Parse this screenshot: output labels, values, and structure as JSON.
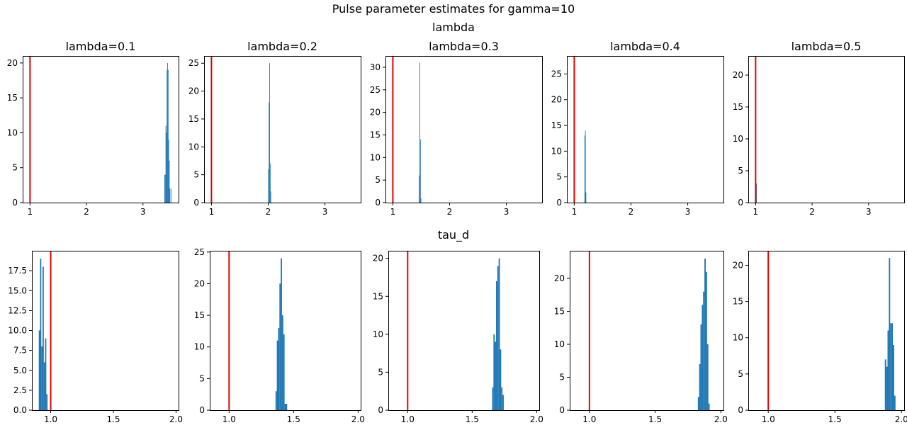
{
  "title": "Pulse parameter estimates for gamma=10",
  "colors": {
    "bars": "#1f77b4",
    "reference_line": "#e60000",
    "axes": "#000000"
  },
  "chart_data": [
    {
      "type": "bar",
      "row_title": "lambda",
      "title": "lambda=0.1",
      "xlim": [
        0.87,
        3.63
      ],
      "ylim": [
        0,
        21
      ],
      "xticks": [
        1,
        2,
        3
      ],
      "xtick_labels": [
        "1",
        "2",
        "3"
      ],
      "yticks": [
        0,
        5,
        10,
        15,
        20
      ],
      "ytick_labels": [
        "0",
        "5",
        "10",
        "15",
        "20"
      ],
      "reference_line_x": 1.0,
      "bins": [
        {
          "x0": 3.38,
          "x1": 3.4,
          "y": 4
        },
        {
          "x0": 3.4,
          "x1": 3.41,
          "y": 11
        },
        {
          "x0": 3.41,
          "x1": 3.42,
          "y": 10
        },
        {
          "x0": 3.42,
          "x1": 3.43,
          "y": 19
        },
        {
          "x0": 3.43,
          "x1": 3.44,
          "y": 20
        },
        {
          "x0": 3.44,
          "x1": 3.45,
          "y": 19
        },
        {
          "x0": 3.45,
          "x1": 3.46,
          "y": 9
        },
        {
          "x0": 3.46,
          "x1": 3.47,
          "y": 6
        },
        {
          "x0": 3.47,
          "x1": 3.48,
          "y": 2
        },
        {
          "x0": 3.49,
          "x1": 3.5,
          "y": 2
        }
      ]
    },
    {
      "type": "bar",
      "row_title": "lambda",
      "title": "lambda=0.2",
      "xlim": [
        0.87,
        3.63
      ],
      "ylim": [
        0,
        26.3
      ],
      "xticks": [
        1,
        2,
        3
      ],
      "xtick_labels": [
        "1",
        "2",
        "3"
      ],
      "yticks": [
        0,
        5,
        10,
        15,
        20,
        25
      ],
      "ytick_labels": [
        "0",
        "5",
        "10",
        "15",
        "20",
        "25"
      ],
      "reference_line_x": 1.0,
      "bins": [
        {
          "x0": 2.0,
          "x1": 2.01,
          "y": 6
        },
        {
          "x0": 2.01,
          "x1": 2.02,
          "y": 18
        },
        {
          "x0": 2.02,
          "x1": 2.03,
          "y": 25
        },
        {
          "x0": 2.03,
          "x1": 2.04,
          "y": 7
        },
        {
          "x0": 2.04,
          "x1": 2.05,
          "y": 2
        }
      ]
    },
    {
      "type": "bar",
      "row_title": "lambda",
      "title": "lambda=0.3",
      "xlim": [
        0.87,
        3.63
      ],
      "ylim": [
        0,
        32.5
      ],
      "xticks": [
        1,
        2,
        3
      ],
      "xtick_labels": [
        "1",
        "2",
        "3"
      ],
      "yticks": [
        0,
        5,
        10,
        15,
        20,
        25,
        30
      ],
      "ytick_labels": [
        "0",
        "5",
        "10",
        "15",
        "20",
        "25",
        "30"
      ],
      "reference_line_x": 1.0,
      "bins": [
        {
          "x0": 1.46,
          "x1": 1.47,
          "y": 6
        },
        {
          "x0": 1.47,
          "x1": 1.48,
          "y": 31
        },
        {
          "x0": 1.48,
          "x1": 1.49,
          "y": 14
        },
        {
          "x0": 1.49,
          "x1": 1.5,
          "y": 1
        }
      ]
    },
    {
      "type": "bar",
      "row_title": "lambda",
      "title": "lambda=0.4",
      "xlim": [
        0.87,
        3.63
      ],
      "ylim": [
        0,
        28.5
      ],
      "xticks": [
        1,
        2,
        3
      ],
      "xtick_labels": [
        "1",
        "2",
        "3"
      ],
      "yticks": [
        0,
        5,
        10,
        15,
        20,
        25
      ],
      "ytick_labels": [
        "0",
        "5",
        "10",
        "15",
        "20",
        "25"
      ],
      "reference_line_x": 1.0,
      "bins": [
        {
          "x0": 1.18,
          "x1": 1.19,
          "y": 13
        },
        {
          "x0": 1.19,
          "x1": 1.2,
          "y": 14
        },
        {
          "x0": 1.2,
          "x1": 1.21,
          "y": 2
        }
      ]
    },
    {
      "type": "bar",
      "row_title": "lambda",
      "title": "lambda=0.5",
      "xlim": [
        0.87,
        3.63
      ],
      "ylim": [
        0,
        23
      ],
      "xticks": [
        1,
        2,
        3
      ],
      "xtick_labels": [
        "1",
        "2",
        "3"
      ],
      "yticks": [
        0,
        5,
        10,
        15,
        20
      ],
      "ytick_labels": [
        "0",
        "5",
        "10",
        "15",
        "20"
      ],
      "reference_line_x": 1.0,
      "bins": [
        {
          "x0": 1.0,
          "x1": 1.01,
          "y": 1
        },
        {
          "x0": 1.01,
          "x1": 1.02,
          "y": 3
        }
      ]
    },
    {
      "type": "bar",
      "row_title": "tau_d",
      "title": "",
      "xlim": [
        0.85,
        2.02
      ],
      "ylim": [
        0,
        20
      ],
      "xticks": [
        1.0,
        1.5,
        2.0
      ],
      "xtick_labels": [
        "1.0",
        "1.5",
        "2.0"
      ],
      "yticks": [
        0,
        2.5,
        5,
        7.5,
        10,
        12.5,
        15,
        17.5
      ],
      "ytick_labels": [
        "0.0",
        "2.5",
        "5.0",
        "7.5",
        "10.0",
        "12.5",
        "15.0",
        "17.5"
      ],
      "reference_line_x": 1.0,
      "bins": [
        {
          "x0": 0.905,
          "x1": 0.915,
          "y": 10
        },
        {
          "x0": 0.915,
          "x1": 0.925,
          "y": 19
        },
        {
          "x0": 0.925,
          "x1": 0.935,
          "y": 8
        },
        {
          "x0": 0.935,
          "x1": 0.945,
          "y": 18
        },
        {
          "x0": 0.945,
          "x1": 0.955,
          "y": 6
        },
        {
          "x0": 0.955,
          "x1": 0.965,
          "y": 9
        },
        {
          "x0": 0.965,
          "x1": 0.975,
          "y": 2
        }
      ]
    },
    {
      "type": "bar",
      "row_title": "tau_d",
      "title": "",
      "xlim": [
        0.85,
        2.02
      ],
      "ylim": [
        0,
        25.2
      ],
      "xticks": [
        1.0,
        1.5,
        2.0
      ],
      "xtick_labels": [
        "1.0",
        "1.5",
        "2.0"
      ],
      "yticks": [
        0,
        5,
        10,
        15,
        20,
        25
      ],
      "ytick_labels": [
        "0",
        "5",
        "10",
        "15",
        "20",
        "25"
      ],
      "reference_line_x": 1.0,
      "bins": [
        {
          "x0": 1.36,
          "x1": 1.37,
          "y": 3
        },
        {
          "x0": 1.37,
          "x1": 1.38,
          "y": 11
        },
        {
          "x0": 1.38,
          "x1": 1.39,
          "y": 13
        },
        {
          "x0": 1.39,
          "x1": 1.4,
          "y": 20
        },
        {
          "x0": 1.4,
          "x1": 1.41,
          "y": 24
        },
        {
          "x0": 1.41,
          "x1": 1.42,
          "y": 15
        },
        {
          "x0": 1.42,
          "x1": 1.43,
          "y": 12
        },
        {
          "x0": 1.43,
          "x1": 1.45,
          "y": 1
        }
      ]
    },
    {
      "type": "bar",
      "row_title": "tau_d",
      "title": "",
      "xlim": [
        0.85,
        2.02
      ],
      "ylim": [
        0,
        21
      ],
      "xticks": [
        1.0,
        1.5,
        2.0
      ],
      "xtick_labels": [
        "1.0",
        "1.5",
        "2.0"
      ],
      "yticks": [
        0,
        5,
        10,
        15,
        20
      ],
      "ytick_labels": [
        "0",
        "5",
        "10",
        "15",
        "20"
      ],
      "reference_line_x": 1.0,
      "bins": [
        {
          "x0": 1.655,
          "x1": 1.665,
          "y": 3
        },
        {
          "x0": 1.665,
          "x1": 1.675,
          "y": 10
        },
        {
          "x0": 1.675,
          "x1": 1.685,
          "y": 9
        },
        {
          "x0": 1.685,
          "x1": 1.695,
          "y": 17
        },
        {
          "x0": 1.695,
          "x1": 1.705,
          "y": 19
        },
        {
          "x0": 1.705,
          "x1": 1.715,
          "y": 20
        },
        {
          "x0": 1.715,
          "x1": 1.725,
          "y": 8
        },
        {
          "x0": 1.725,
          "x1": 1.735,
          "y": 3
        },
        {
          "x0": 1.735,
          "x1": 1.745,
          "y": 2
        }
      ]
    },
    {
      "type": "bar",
      "row_title": "tau_d",
      "title": "",
      "xlim": [
        0.85,
        2.02
      ],
      "ylim": [
        0,
        24.2
      ],
      "xticks": [
        1.0,
        1.5,
        2.0
      ],
      "xtick_labels": [
        "1.0",
        "1.5",
        "2.0"
      ],
      "yticks": [
        0,
        5,
        10,
        15,
        20
      ],
      "ytick_labels": [
        "0",
        "5",
        "10",
        "15",
        "20"
      ],
      "reference_line_x": 1.0,
      "bins": [
        {
          "x0": 1.825,
          "x1": 1.835,
          "y": 2
        },
        {
          "x0": 1.835,
          "x1": 1.845,
          "y": 7
        },
        {
          "x0": 1.845,
          "x1": 1.855,
          "y": 13
        },
        {
          "x0": 1.855,
          "x1": 1.865,
          "y": 16
        },
        {
          "x0": 1.865,
          "x1": 1.875,
          "y": 18
        },
        {
          "x0": 1.875,
          "x1": 1.885,
          "y": 23
        },
        {
          "x0": 1.885,
          "x1": 1.895,
          "y": 21
        },
        {
          "x0": 1.895,
          "x1": 1.905,
          "y": 10
        },
        {
          "x0": 1.905,
          "x1": 1.915,
          "y": 1
        }
      ]
    },
    {
      "type": "bar",
      "row_title": "tau_d",
      "title": "",
      "xlim": [
        0.85,
        2.02
      ],
      "ylim": [
        0,
        22
      ],
      "xticks": [
        1.0,
        1.5,
        2.0
      ],
      "xtick_labels": [
        "1.0",
        "1.5",
        "2.0"
      ],
      "yticks": [
        0,
        5,
        10,
        15,
        20
      ],
      "ytick_labels": [
        "0",
        "5",
        "10",
        "15",
        "20"
      ],
      "reference_line_x": 1.0,
      "bins": [
        {
          "x0": 1.875,
          "x1": 1.885,
          "y": 7
        },
        {
          "x0": 1.885,
          "x1": 1.895,
          "y": 6
        },
        {
          "x0": 1.895,
          "x1": 1.905,
          "y": 11
        },
        {
          "x0": 1.905,
          "x1": 1.915,
          "y": 21
        },
        {
          "x0": 1.915,
          "x1": 1.925,
          "y": 12
        },
        {
          "x0": 1.925,
          "x1": 1.935,
          "y": 12
        },
        {
          "x0": 1.935,
          "x1": 1.945,
          "y": 9
        },
        {
          "x0": 1.945,
          "x1": 1.955,
          "y": 2
        }
      ]
    }
  ],
  "row_titles": [
    "lambda",
    "tau_d"
  ]
}
